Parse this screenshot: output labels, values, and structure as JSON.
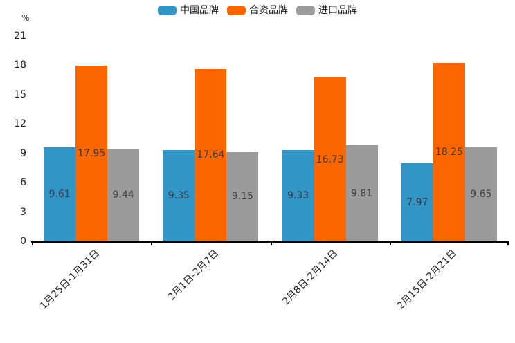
{
  "chart_data": {
    "type": "bar",
    "title": "",
    "ylabel": "%",
    "xlabel": "",
    "categories": [
      "1月25日-1月31日",
      "2月1日-2月7日",
      "2月8日-2月14日",
      "2月15日-2月21日"
    ],
    "series": [
      {
        "name": "中国品牌",
        "color": "#3195C8",
        "values": [
          9.61,
          9.35,
          9.33,
          7.97
        ]
      },
      {
        "name": "合资品牌",
        "color": "#FC6600",
        "values": [
          17.95,
          17.64,
          16.73,
          18.25
        ]
      },
      {
        "name": "进口品牌",
        "color": "#9B9B9B",
        "values": [
          9.44,
          9.15,
          9.81,
          9.65
        ]
      }
    ],
    "value_labels": true,
    "yticks": [
      0,
      3,
      6,
      9,
      12,
      15,
      18,
      21
    ],
    "ylim": [
      0,
      21
    ],
    "grid": false,
    "legend_position": "top-center",
    "axis_color": "#000000",
    "text_color": "#1f1f1f",
    "bar_label_color": "#3a3a3a"
  }
}
